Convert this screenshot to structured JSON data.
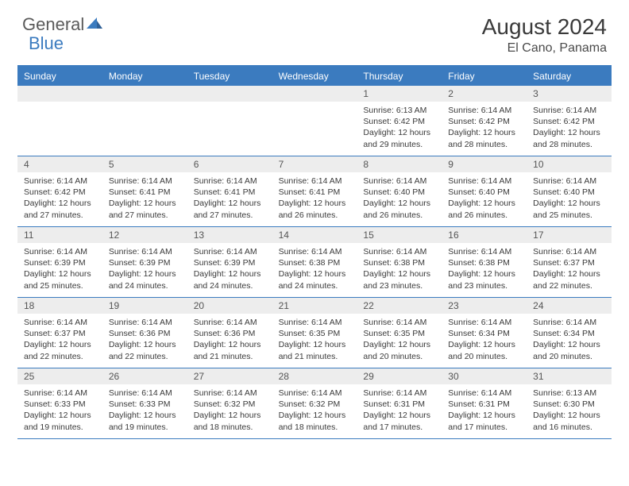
{
  "logo": {
    "text1": "General",
    "text2": "Blue"
  },
  "title": "August 2024",
  "location": "El Cano, Panama",
  "day_headers": [
    "Sunday",
    "Monday",
    "Tuesday",
    "Wednesday",
    "Thursday",
    "Friday",
    "Saturday"
  ],
  "colors": {
    "accent": "#3b7bbf",
    "header_bg": "#3b7bbf",
    "header_text": "#ffffff",
    "number_bg": "#ededed",
    "text": "#3a3a3a",
    "logo_gray": "#5a5a5a"
  },
  "weeks": [
    [
      {
        "n": "",
        "sr": "",
        "ss": "",
        "dl": ""
      },
      {
        "n": "",
        "sr": "",
        "ss": "",
        "dl": ""
      },
      {
        "n": "",
        "sr": "",
        "ss": "",
        "dl": ""
      },
      {
        "n": "",
        "sr": "",
        "ss": "",
        "dl": ""
      },
      {
        "n": "1",
        "sr": "Sunrise: 6:13 AM",
        "ss": "Sunset: 6:42 PM",
        "dl": "Daylight: 12 hours and 29 minutes."
      },
      {
        "n": "2",
        "sr": "Sunrise: 6:14 AM",
        "ss": "Sunset: 6:42 PM",
        "dl": "Daylight: 12 hours and 28 minutes."
      },
      {
        "n": "3",
        "sr": "Sunrise: 6:14 AM",
        "ss": "Sunset: 6:42 PM",
        "dl": "Daylight: 12 hours and 28 minutes."
      }
    ],
    [
      {
        "n": "4",
        "sr": "Sunrise: 6:14 AM",
        "ss": "Sunset: 6:42 PM",
        "dl": "Daylight: 12 hours and 27 minutes."
      },
      {
        "n": "5",
        "sr": "Sunrise: 6:14 AM",
        "ss": "Sunset: 6:41 PM",
        "dl": "Daylight: 12 hours and 27 minutes."
      },
      {
        "n": "6",
        "sr": "Sunrise: 6:14 AM",
        "ss": "Sunset: 6:41 PM",
        "dl": "Daylight: 12 hours and 27 minutes."
      },
      {
        "n": "7",
        "sr": "Sunrise: 6:14 AM",
        "ss": "Sunset: 6:41 PM",
        "dl": "Daylight: 12 hours and 26 minutes."
      },
      {
        "n": "8",
        "sr": "Sunrise: 6:14 AM",
        "ss": "Sunset: 6:40 PM",
        "dl": "Daylight: 12 hours and 26 minutes."
      },
      {
        "n": "9",
        "sr": "Sunrise: 6:14 AM",
        "ss": "Sunset: 6:40 PM",
        "dl": "Daylight: 12 hours and 26 minutes."
      },
      {
        "n": "10",
        "sr": "Sunrise: 6:14 AM",
        "ss": "Sunset: 6:40 PM",
        "dl": "Daylight: 12 hours and 25 minutes."
      }
    ],
    [
      {
        "n": "11",
        "sr": "Sunrise: 6:14 AM",
        "ss": "Sunset: 6:39 PM",
        "dl": "Daylight: 12 hours and 25 minutes."
      },
      {
        "n": "12",
        "sr": "Sunrise: 6:14 AM",
        "ss": "Sunset: 6:39 PM",
        "dl": "Daylight: 12 hours and 24 minutes."
      },
      {
        "n": "13",
        "sr": "Sunrise: 6:14 AM",
        "ss": "Sunset: 6:39 PM",
        "dl": "Daylight: 12 hours and 24 minutes."
      },
      {
        "n": "14",
        "sr": "Sunrise: 6:14 AM",
        "ss": "Sunset: 6:38 PM",
        "dl": "Daylight: 12 hours and 24 minutes."
      },
      {
        "n": "15",
        "sr": "Sunrise: 6:14 AM",
        "ss": "Sunset: 6:38 PM",
        "dl": "Daylight: 12 hours and 23 minutes."
      },
      {
        "n": "16",
        "sr": "Sunrise: 6:14 AM",
        "ss": "Sunset: 6:38 PM",
        "dl": "Daylight: 12 hours and 23 minutes."
      },
      {
        "n": "17",
        "sr": "Sunrise: 6:14 AM",
        "ss": "Sunset: 6:37 PM",
        "dl": "Daylight: 12 hours and 22 minutes."
      }
    ],
    [
      {
        "n": "18",
        "sr": "Sunrise: 6:14 AM",
        "ss": "Sunset: 6:37 PM",
        "dl": "Daylight: 12 hours and 22 minutes."
      },
      {
        "n": "19",
        "sr": "Sunrise: 6:14 AM",
        "ss": "Sunset: 6:36 PM",
        "dl": "Daylight: 12 hours and 22 minutes."
      },
      {
        "n": "20",
        "sr": "Sunrise: 6:14 AM",
        "ss": "Sunset: 6:36 PM",
        "dl": "Daylight: 12 hours and 21 minutes."
      },
      {
        "n": "21",
        "sr": "Sunrise: 6:14 AM",
        "ss": "Sunset: 6:35 PM",
        "dl": "Daylight: 12 hours and 21 minutes."
      },
      {
        "n": "22",
        "sr": "Sunrise: 6:14 AM",
        "ss": "Sunset: 6:35 PM",
        "dl": "Daylight: 12 hours and 20 minutes."
      },
      {
        "n": "23",
        "sr": "Sunrise: 6:14 AM",
        "ss": "Sunset: 6:34 PM",
        "dl": "Daylight: 12 hours and 20 minutes."
      },
      {
        "n": "24",
        "sr": "Sunrise: 6:14 AM",
        "ss": "Sunset: 6:34 PM",
        "dl": "Daylight: 12 hours and 20 minutes."
      }
    ],
    [
      {
        "n": "25",
        "sr": "Sunrise: 6:14 AM",
        "ss": "Sunset: 6:33 PM",
        "dl": "Daylight: 12 hours and 19 minutes."
      },
      {
        "n": "26",
        "sr": "Sunrise: 6:14 AM",
        "ss": "Sunset: 6:33 PM",
        "dl": "Daylight: 12 hours and 19 minutes."
      },
      {
        "n": "27",
        "sr": "Sunrise: 6:14 AM",
        "ss": "Sunset: 6:32 PM",
        "dl": "Daylight: 12 hours and 18 minutes."
      },
      {
        "n": "28",
        "sr": "Sunrise: 6:14 AM",
        "ss": "Sunset: 6:32 PM",
        "dl": "Daylight: 12 hours and 18 minutes."
      },
      {
        "n": "29",
        "sr": "Sunrise: 6:14 AM",
        "ss": "Sunset: 6:31 PM",
        "dl": "Daylight: 12 hours and 17 minutes."
      },
      {
        "n": "30",
        "sr": "Sunrise: 6:14 AM",
        "ss": "Sunset: 6:31 PM",
        "dl": "Daylight: 12 hours and 17 minutes."
      },
      {
        "n": "31",
        "sr": "Sunrise: 6:13 AM",
        "ss": "Sunset: 6:30 PM",
        "dl": "Daylight: 12 hours and 16 minutes."
      }
    ]
  ]
}
